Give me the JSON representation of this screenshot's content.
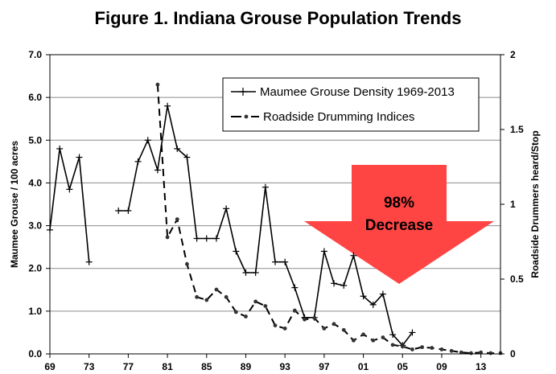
{
  "chart_data": {
    "type": "line",
    "title": "Figure 1. Indiana Grouse Population Trends",
    "ylabel": "Maumee Grouse / 100 acres",
    "y2label": "Roadside Drummers heard/Stop",
    "ylim": [
      0,
      7
    ],
    "y2lim": [
      0,
      2
    ],
    "yticks": [
      "0.0",
      "1.0",
      "2.0",
      "3.0",
      "4.0",
      "5.0",
      "6.0",
      "7.0"
    ],
    "y2ticks": [
      "0",
      "0.5",
      "1",
      "1.5",
      "2"
    ],
    "xlim": [
      1969,
      2015
    ],
    "xticks": [
      "69",
      "73",
      "77",
      "81",
      "85",
      "89",
      "93",
      "97",
      "01",
      "05",
      "09",
      "13"
    ],
    "grid": "horizontal",
    "legend": "top-right",
    "series": [
      {
        "name": "Maumee Grouse Density 1969-2013",
        "axis": "left",
        "style": "solid-plus",
        "segments": [
          {
            "x": [
              1969,
              1970,
              1971,
              1972,
              1973
            ],
            "y": [
              2.9,
              4.8,
              3.85,
              4.6,
              2.15
            ]
          },
          {
            "x": [
              1976,
              1977,
              1978,
              1979,
              1980,
              1981,
              1982,
              1983,
              1984,
              1985,
              1986,
              1987,
              1988,
              1989,
              1990,
              1991,
              1992,
              1993,
              1994,
              1995,
              1996,
              1997,
              1998,
              1999,
              2000,
              2001,
              2002,
              2003,
              2004,
              2005,
              2006
            ],
            "y": [
              3.35,
              3.35,
              4.5,
              5.0,
              4.3,
              5.8,
              4.8,
              4.6,
              2.7,
              2.7,
              2.7,
              3.4,
              2.4,
              1.9,
              1.9,
              3.9,
              2.15,
              2.15,
              1.55,
              0.85,
              0.85,
              2.4,
              1.65,
              1.6,
              2.3,
              1.35,
              1.15,
              1.4,
              0.45,
              0.2,
              0.5
            ]
          }
        ]
      },
      {
        "name": "Roadside Drumming Indices",
        "axis": "right",
        "style": "dashed-dot",
        "segments": [
          {
            "x": [
              1980,
              1981,
              1982,
              1983,
              1984,
              1985,
              1986,
              1987,
              1988,
              1989,
              1990,
              1991,
              1992,
              1993,
              1994,
              1995,
              1996,
              1997,
              1998,
              1999,
              2000,
              2001,
              2002,
              2003,
              2004,
              2005,
              2006,
              2007,
              2008,
              2009,
              2010,
              2011,
              2012,
              2013,
              2014,
              2015
            ],
            "y": [
              1.8,
              0.78,
              0.9,
              0.6,
              0.38,
              0.36,
              0.43,
              0.38,
              0.28,
              0.25,
              0.35,
              0.32,
              0.19,
              0.17,
              0.29,
              0.23,
              0.24,
              0.17,
              0.2,
              0.16,
              0.09,
              0.13,
              0.09,
              0.11,
              0.06,
              0.05,
              0.03,
              0.045,
              0.04,
              0.03,
              0.02,
              0.01,
              0.005,
              0.01,
              0.005,
              0.005
            ]
          }
        ]
      }
    ],
    "annotation": {
      "line1": "98%",
      "line2": "Decrease",
      "color": "#ff4444"
    }
  }
}
